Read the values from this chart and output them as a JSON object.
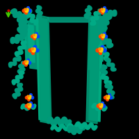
{
  "background_color": "#000000",
  "figure_size": [
    2.0,
    2.0
  ],
  "dpi": 100,
  "protein_color": "#00997a",
  "protein_color2": "#00aa85",
  "protein_color3": "#008866",
  "ligand_colors": [
    "#ffcc00",
    "#ff4400",
    "#0044ff",
    "#ff8800",
    "#00cc44"
  ],
  "axis_x_color": "#0055ff",
  "axis_y_color": "#44cc00",
  "axis_origin_color": "#cc0000"
}
